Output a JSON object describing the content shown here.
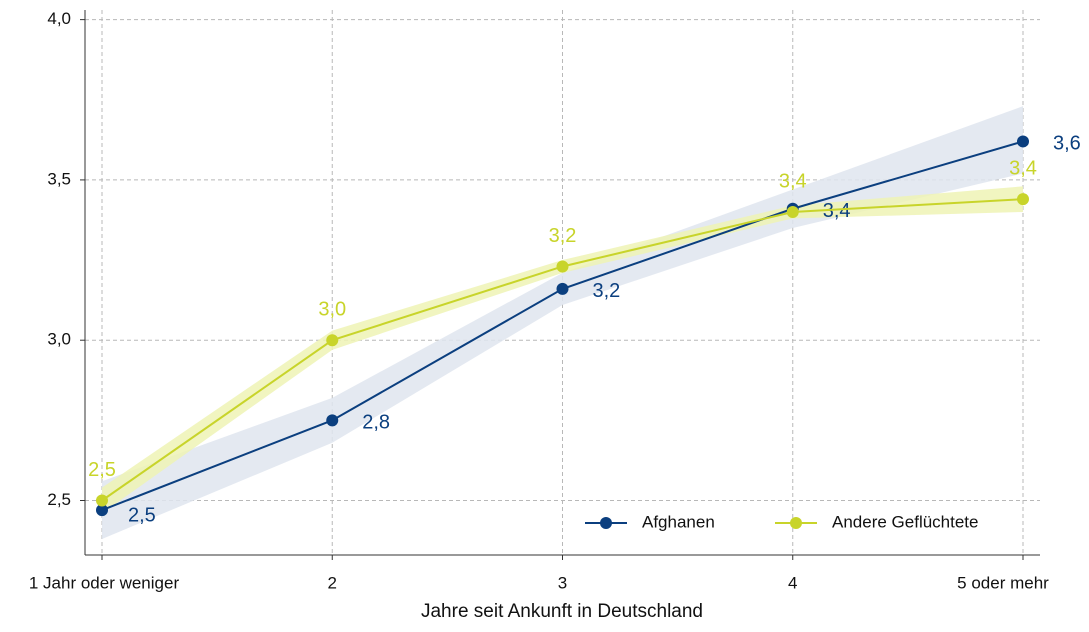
{
  "chart_data": {
    "type": "line",
    "xlabel": "Jahre seit Ankunft in Deutschland",
    "categories": [
      "1 Jahr oder weniger",
      "2",
      "3",
      "4",
      "5 oder mehr"
    ],
    "series": [
      {
        "name": "Afghanen",
        "color": "#0b3f7f",
        "band_color": "#dfe5ef",
        "values": [
          2.47,
          2.75,
          3.16,
          3.41,
          3.62
        ],
        "value_labels": [
          "2,5",
          "2,8",
          "3,2",
          "3,4",
          "3,6"
        ],
        "lower": [
          2.38,
          2.68,
          3.11,
          3.35,
          3.52
        ],
        "upper": [
          2.56,
          2.82,
          3.21,
          3.47,
          3.73
        ]
      },
      {
        "name": "Andere Geflüchtete",
        "color": "#c8d42a",
        "band_color": "#eef3b5",
        "values": [
          2.5,
          3.0,
          3.23,
          3.4,
          3.44
        ],
        "value_labels": [
          "2,5",
          "3,0",
          "3,2",
          "3,4",
          "3,4"
        ],
        "lower": [
          2.46,
          2.97,
          3.21,
          3.38,
          3.4
        ],
        "upper": [
          2.54,
          3.03,
          3.25,
          3.42,
          3.48
        ]
      }
    ],
    "ylim": [
      2.33,
      4.03
    ],
    "yticks": [
      {
        "value": 2.5,
        "label": "2,5"
      },
      {
        "value": 3.0,
        "label": "3,0"
      },
      {
        "value": 3.5,
        "label": "3,5"
      },
      {
        "value": 4.0,
        "label": "4,0"
      }
    ],
    "grid": true,
    "legend": "lower right"
  }
}
